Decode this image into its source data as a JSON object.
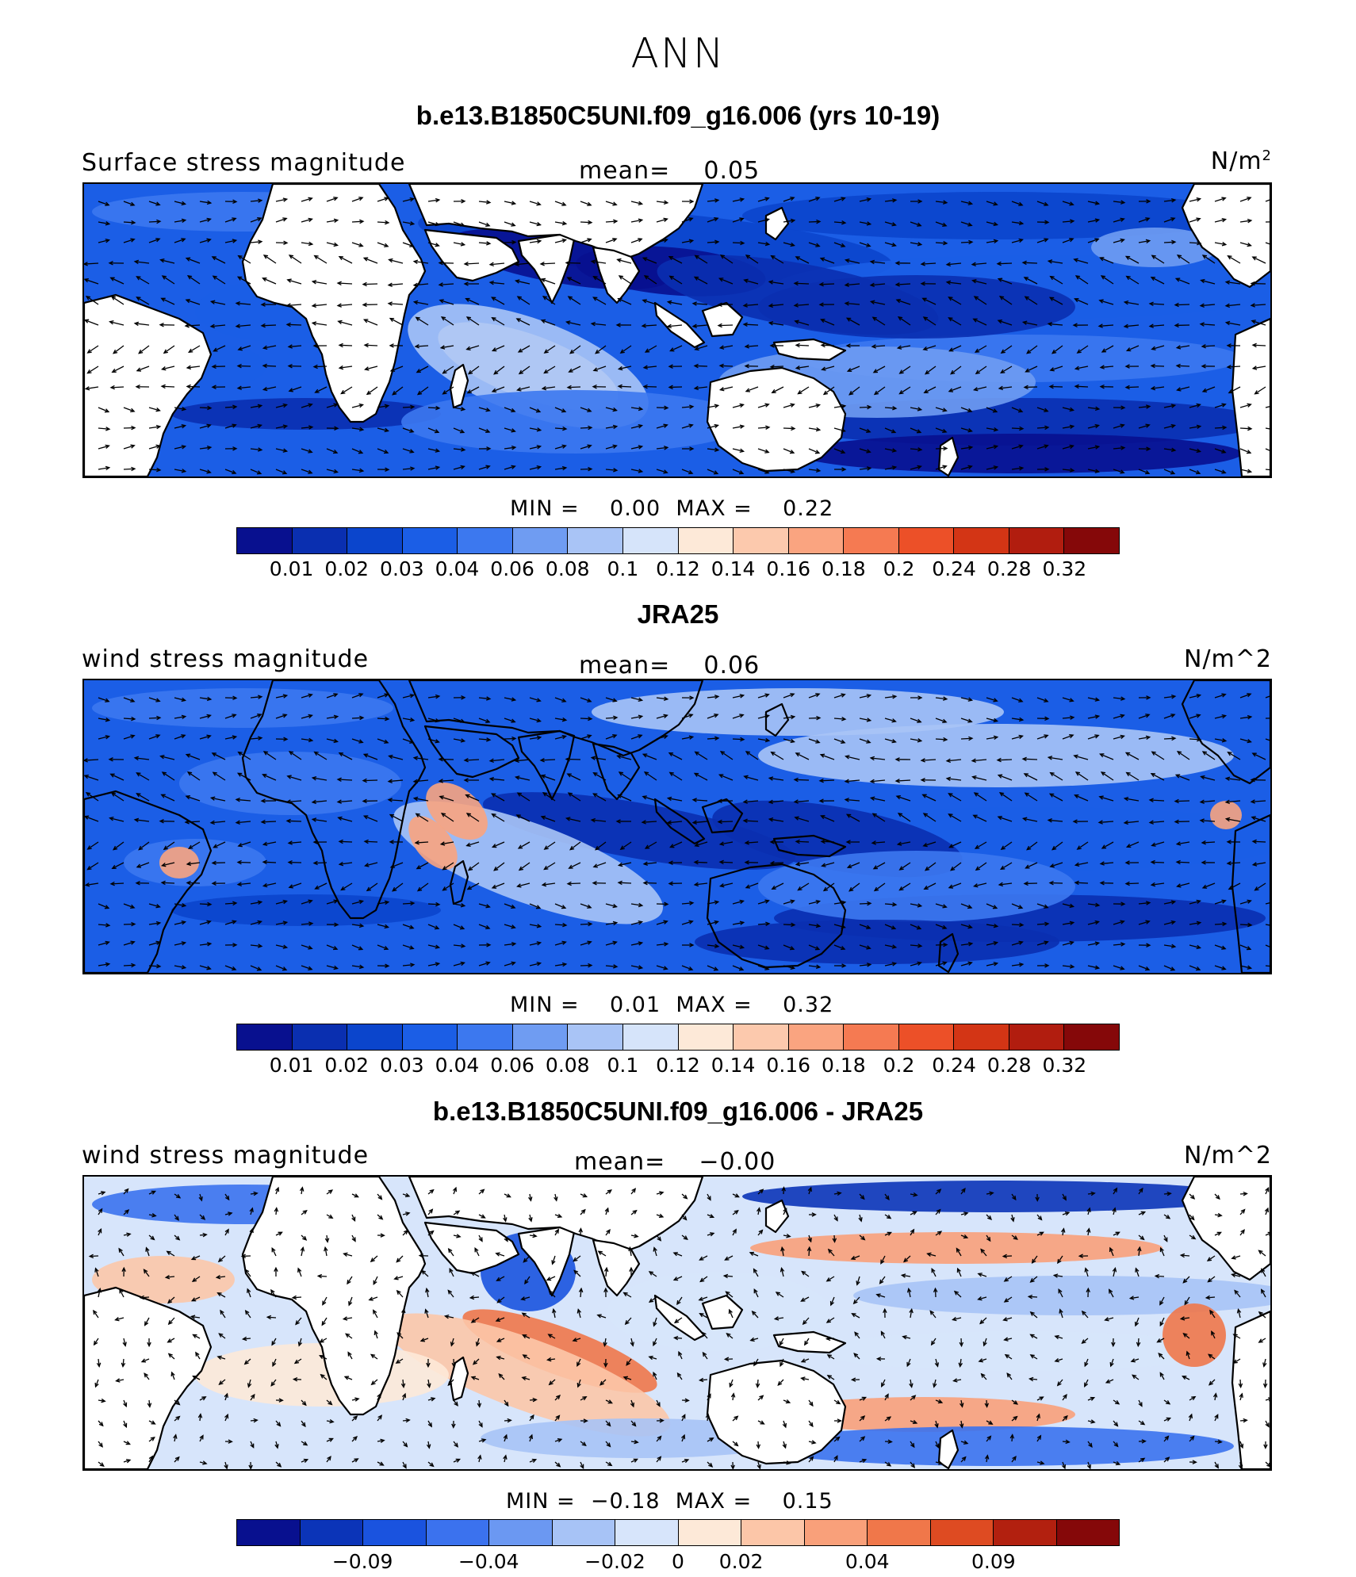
{
  "title": "ANN",
  "palette": {
    "seq": [
      "#08108f",
      "#0a2fb0",
      "#0b45cc",
      "#1b5ee6",
      "#3c78ef",
      "#6f9cf2",
      "#a9c4f6",
      "#d6e4fa",
      "#fde9d8",
      "#fcc9ad",
      "#faa480",
      "#f57a52",
      "#ec5028",
      "#d33515",
      "#b11d0f",
      "#850809"
    ],
    "diff": [
      "#08108f",
      "#0b34b8",
      "#1a53df",
      "#3b72ee",
      "#6b98f2",
      "#a7c3f6",
      "#d7e5fb",
      "#fde9d8",
      "#fcc6a8",
      "#f9a07a",
      "#f0774a",
      "#de4b22",
      "#b2200f",
      "#850809"
    ],
    "land": "#ffffff",
    "coast": "#000000"
  },
  "panels": [
    {
      "title": "b.e13.B1850C5UNI.f09_g16.006 (yrs 10-19)",
      "left_label": "Surface stress magnitude",
      "mean_label": "mean=",
      "mean_value": "0.05",
      "units": "N/m",
      "units_sup": "2",
      "min_label": "MIN =",
      "min_value": "0.00",
      "max_label": "MAX =",
      "max_value": "0.22",
      "colorbar_ticks": [
        "0.01",
        "0.02",
        "0.03",
        "0.04",
        "0.06",
        "0.08",
        "0.1",
        "0.12",
        "0.14",
        "0.16",
        "0.18",
        "0.2",
        "0.24",
        "0.28",
        "0.32"
      ]
    },
    {
      "title": "JRA25",
      "left_label": "wind stress magnitude",
      "mean_label": "mean=",
      "mean_value": "0.06",
      "units": "N/m^2",
      "min_label": "MIN =",
      "min_value": "0.01",
      "max_label": "MAX =",
      "max_value": "0.32",
      "colorbar_ticks": [
        "0.01",
        "0.02",
        "0.03",
        "0.04",
        "0.06",
        "0.08",
        "0.1",
        "0.12",
        "0.14",
        "0.16",
        "0.18",
        "0.2",
        "0.24",
        "0.28",
        "0.32"
      ]
    },
    {
      "title": "b.e13.B1850C5UNI.f09_g16.006 - JRA25",
      "left_label": "wind stress magnitude",
      "mean_label": "mean=",
      "mean_value": "-0.00",
      "units": "N/m^2",
      "min_label": "MIN =",
      "min_value": "-0.18",
      "max_label": "MAX =",
      "max_value": "0.15",
      "colorbar_ticks": [
        "-0.09",
        "-0.04",
        "-0.02",
        "0",
        "0.02",
        "0.04",
        "0.09"
      ]
    }
  ]
}
